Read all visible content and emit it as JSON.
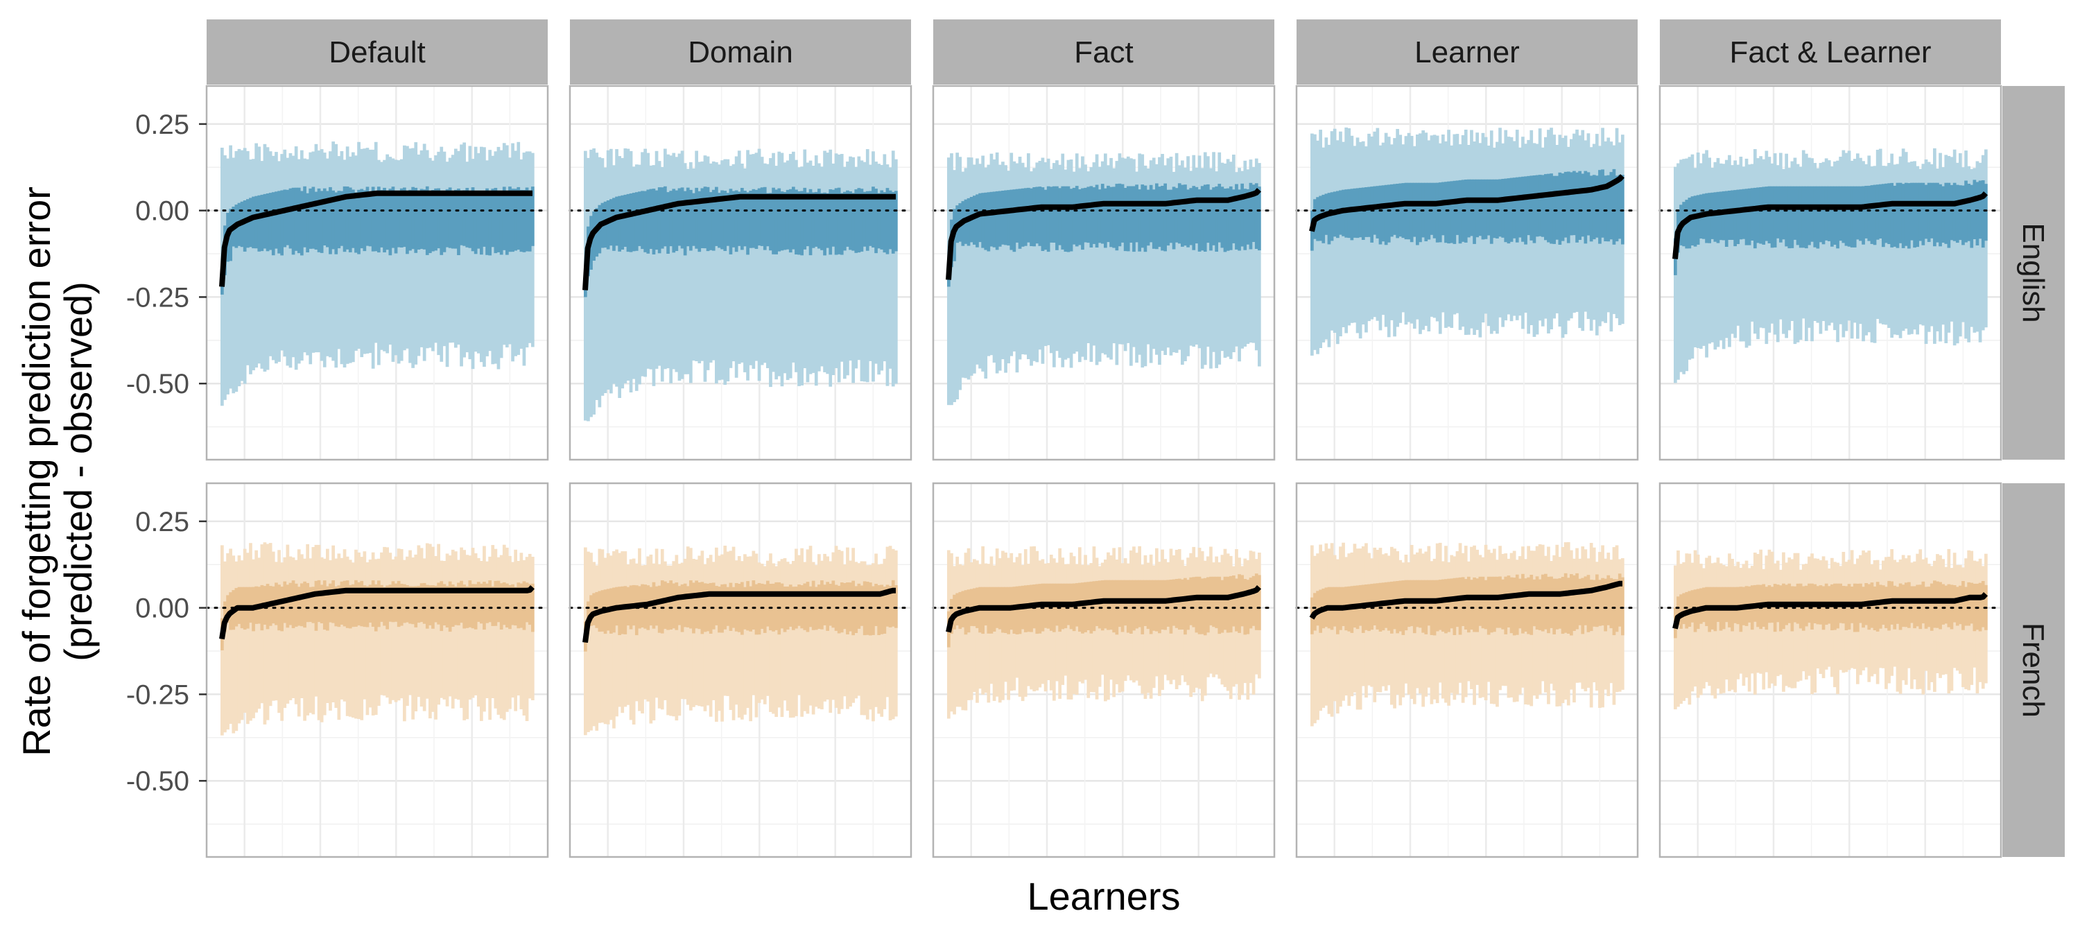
{
  "chart_data": {
    "type": "line",
    "title": "",
    "xlabel": "Learners",
    "ylabel_lines": [
      "Rate of forgetting prediction error",
      "(predicted - observed)"
    ],
    "ylim": [
      -0.72,
      0.36
    ],
    "y_ticks": [
      0.25,
      0.0,
      -0.25,
      -0.5
    ],
    "y_tick_labels": [
      "0.25",
      "0.00",
      "-0.25",
      "-0.50"
    ],
    "reference_line": 0.0,
    "grid": true,
    "legend": "none",
    "facet_columns": [
      "Default",
      "Domain",
      "Fact",
      "Learner",
      "Fact & Learner"
    ],
    "facet_rows": [
      "English",
      "French"
    ],
    "colors": {
      "English": {
        "inner": "#5a9ebf",
        "outer": "#b3d4e2"
      },
      "French": {
        "inner": "#e9c292",
        "outer": "#f5dfc3"
      },
      "line": "#000000",
      "strip": "#b3b3b3",
      "grid": "#e6e6e6",
      "panel_border": "#b3b3b3"
    },
    "x": [
      0,
      0.005,
      0.02,
      0.05,
      0.1,
      0.2,
      0.3,
      0.4,
      0.5,
      0.6,
      0.7,
      0.8,
      0.9,
      0.95,
      0.99,
      1.0
    ],
    "panels": [
      {
        "row": "English",
        "col": "Default",
        "median": [
          -0.22,
          -0.12,
          -0.06,
          -0.04,
          -0.02,
          0.0,
          0.02,
          0.04,
          0.05,
          0.05,
          0.05,
          0.05,
          0.05,
          0.05,
          0.05,
          0.05
        ],
        "inner": [
          -0.13,
          0.05
        ],
        "outer": [
          -0.55,
          0.2
        ]
      },
      {
        "row": "English",
        "col": "Domain",
        "median": [
          -0.23,
          -0.12,
          -0.07,
          -0.04,
          -0.02,
          0.0,
          0.02,
          0.03,
          0.04,
          0.04,
          0.04,
          0.04,
          0.04,
          0.04,
          0.04,
          0.04
        ],
        "inner": [
          -0.13,
          0.05
        ],
        "outer": [
          -0.6,
          0.18
        ]
      },
      {
        "row": "English",
        "col": "Fact",
        "median": [
          -0.2,
          -0.1,
          -0.05,
          -0.03,
          -0.01,
          0.0,
          0.01,
          0.01,
          0.02,
          0.02,
          0.02,
          0.03,
          0.03,
          0.04,
          0.05,
          0.06
        ],
        "inner": [
          -0.12,
          0.06
        ],
        "outer": [
          -0.55,
          0.17
        ]
      },
      {
        "row": "English",
        "col": "Learner",
        "median": [
          -0.06,
          -0.03,
          -0.02,
          -0.01,
          0.0,
          0.01,
          0.02,
          0.02,
          0.03,
          0.03,
          0.04,
          0.05,
          0.06,
          0.07,
          0.09,
          0.1
        ],
        "inner": [
          -0.1,
          0.1
        ],
        "outer": [
          -0.4,
          0.24
        ]
      },
      {
        "row": "English",
        "col": "Fact & Learner",
        "median": [
          -0.14,
          -0.07,
          -0.04,
          -0.02,
          -0.01,
          0.0,
          0.01,
          0.01,
          0.01,
          0.01,
          0.02,
          0.02,
          0.02,
          0.03,
          0.04,
          0.05
        ],
        "inner": [
          -0.11,
          0.07
        ],
        "outer": [
          -0.48,
          0.18
        ]
      },
      {
        "row": "French",
        "col": "Default",
        "median": [
          -0.09,
          -0.05,
          -0.02,
          0.0,
          0.0,
          0.02,
          0.04,
          0.05,
          0.05,
          0.05,
          0.05,
          0.05,
          0.05,
          0.05,
          0.05,
          0.06
        ],
        "inner": [
          -0.07,
          0.06
        ],
        "outer": [
          -0.36,
          0.19
        ]
      },
      {
        "row": "French",
        "col": "Domain",
        "median": [
          -0.1,
          -0.05,
          -0.02,
          -0.01,
          0.0,
          0.01,
          0.03,
          0.04,
          0.04,
          0.04,
          0.04,
          0.04,
          0.04,
          0.04,
          0.05,
          0.05
        ],
        "inner": [
          -0.08,
          0.06
        ],
        "outer": [
          -0.36,
          0.18
        ]
      },
      {
        "row": "French",
        "col": "Fact",
        "median": [
          -0.07,
          -0.04,
          -0.02,
          -0.01,
          0.0,
          0.0,
          0.01,
          0.01,
          0.02,
          0.02,
          0.02,
          0.03,
          0.03,
          0.04,
          0.05,
          0.06
        ],
        "inner": [
          -0.08,
          0.08
        ],
        "outer": [
          -0.3,
          0.18
        ]
      },
      {
        "row": "French",
        "col": "Learner",
        "median": [
          -0.03,
          -0.02,
          -0.01,
          0.0,
          0.0,
          0.01,
          0.02,
          0.02,
          0.03,
          0.03,
          0.04,
          0.04,
          0.05,
          0.06,
          0.07,
          0.07
        ],
        "inner": [
          -0.08,
          0.08
        ],
        "outer": [
          -0.32,
          0.19
        ]
      },
      {
        "row": "French",
        "col": "Fact & Learner",
        "median": [
          -0.06,
          -0.03,
          -0.02,
          -0.01,
          0.0,
          0.0,
          0.01,
          0.01,
          0.01,
          0.01,
          0.02,
          0.02,
          0.02,
          0.03,
          0.03,
          0.04
        ],
        "inner": [
          -0.07,
          0.06
        ],
        "outer": [
          -0.28,
          0.17
        ]
      }
    ]
  }
}
